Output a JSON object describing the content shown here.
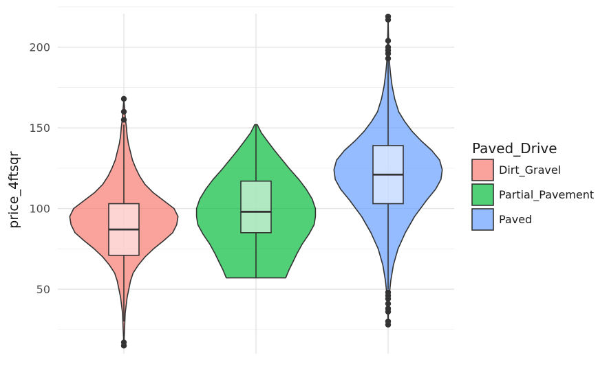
{
  "chart_data": {
    "type": "violin",
    "overlay": "boxplot",
    "xlabel": "",
    "ylabel": "price_4ftsqr",
    "ylim": [
      10,
      225
    ],
    "yticks": [
      50,
      100,
      150,
      200
    ],
    "grid": true,
    "legend": {
      "title": "Paved_Drive",
      "placement": "right"
    },
    "series": [
      {
        "name": "Dirt_Gravel",
        "color": "#F8766D",
        "min": 30,
        "q1": 71,
        "median": 87,
        "q3": 103,
        "max": 152,
        "range": [
          15,
          168
        ],
        "outliers": [
          15,
          17,
          155,
          160,
          168
        ],
        "density": [
          [
            15,
            0.0
          ],
          [
            25,
            0.01
          ],
          [
            35,
            0.02
          ],
          [
            45,
            0.05
          ],
          [
            55,
            0.1
          ],
          [
            60,
            0.14
          ],
          [
            65,
            0.22
          ],
          [
            70,
            0.32
          ],
          [
            75,
            0.45
          ],
          [
            80,
            0.6
          ],
          [
            85,
            0.74
          ],
          [
            90,
            0.8
          ],
          [
            95,
            0.82
          ],
          [
            100,
            0.76
          ],
          [
            105,
            0.6
          ],
          [
            110,
            0.44
          ],
          [
            115,
            0.32
          ],
          [
            120,
            0.24
          ],
          [
            125,
            0.18
          ],
          [
            130,
            0.13
          ],
          [
            135,
            0.1
          ],
          [
            140,
            0.07
          ],
          [
            145,
            0.05
          ],
          [
            150,
            0.04
          ],
          [
            155,
            0.025
          ],
          [
            160,
            0.015
          ],
          [
            168,
            0.0
          ]
        ]
      },
      {
        "name": "Partial_Pavement",
        "color": "#00BA38",
        "min": 57,
        "q1": 85,
        "median": 98,
        "q3": 117,
        "max": 152,
        "range": [
          57,
          152
        ],
        "outliers": [],
        "density": [
          [
            57,
            0.45
          ],
          [
            62,
            0.5
          ],
          [
            67,
            0.56
          ],
          [
            72,
            0.62
          ],
          [
            78,
            0.7
          ],
          [
            84,
            0.8
          ],
          [
            90,
            0.88
          ],
          [
            95,
            0.9
          ],
          [
            100,
            0.9
          ],
          [
            106,
            0.85
          ],
          [
            112,
            0.76
          ],
          [
            118,
            0.65
          ],
          [
            124,
            0.52
          ],
          [
            130,
            0.4
          ],
          [
            136,
            0.28
          ],
          [
            142,
            0.17
          ],
          [
            147,
            0.08
          ],
          [
            152,
            0.02
          ]
        ]
      },
      {
        "name": "Paved",
        "color": "#619CFF",
        "min": 50,
        "q1": 103,
        "median": 121,
        "q3": 139,
        "max": 192,
        "range": [
          28,
          219
        ],
        "outliers": [
          28,
          30,
          36,
          38,
          41,
          44,
          46,
          48,
          193,
          196,
          198,
          200,
          204,
          217,
          219
        ],
        "density": [
          [
            28,
            0.0
          ],
          [
            35,
            0.005
          ],
          [
            45,
            0.015
          ],
          [
            55,
            0.04
          ],
          [
            65,
            0.08
          ],
          [
            75,
            0.15
          ],
          [
            85,
            0.26
          ],
          [
            95,
            0.4
          ],
          [
            105,
            0.58
          ],
          [
            112,
            0.72
          ],
          [
            118,
            0.8
          ],
          [
            124,
            0.82
          ],
          [
            130,
            0.78
          ],
          [
            136,
            0.66
          ],
          [
            142,
            0.5
          ],
          [
            148,
            0.36
          ],
          [
            154,
            0.25
          ],
          [
            160,
            0.16
          ],
          [
            168,
            0.1
          ],
          [
            176,
            0.06
          ],
          [
            184,
            0.035
          ],
          [
            192,
            0.018
          ],
          [
            200,
            0.01
          ],
          [
            210,
            0.004
          ],
          [
            219,
            0.0
          ]
        ]
      }
    ]
  }
}
